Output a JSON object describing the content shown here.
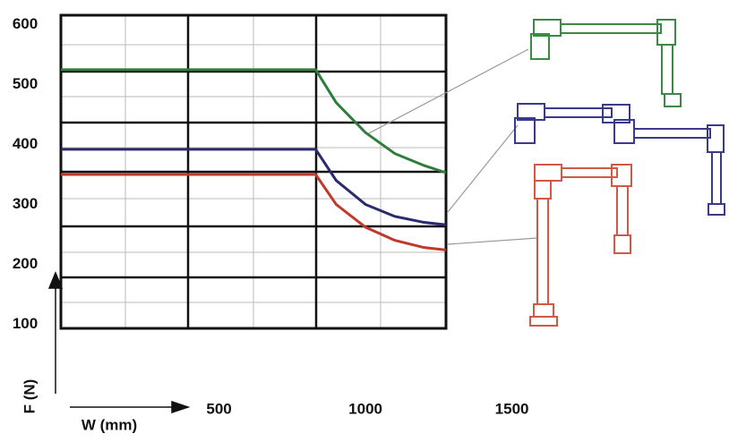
{
  "chart_data": {
    "type": "line",
    "y_axis_label": "F (N)",
    "x_axis_label": "W (mm)",
    "x": [
      -40,
      830,
      900,
      1000,
      1100,
      1200,
      1275
    ],
    "series": [
      {
        "color": "#2e7d3a",
        "values": [
          525,
          525,
          470,
          420,
          385,
          365,
          353
        ]
      },
      {
        "color": "#2a2a6e",
        "values": [
          392,
          392,
          340,
          300,
          280,
          270,
          266
        ]
      },
      {
        "color": "#c0392b",
        "values": [
          350,
          350,
          300,
          262,
          240,
          228,
          224
        ]
      }
    ],
    "xlim": [
      -40,
      1275
    ],
    "xticks": [
      500,
      1000,
      1500
    ],
    "ylim": [
      93,
      616
    ],
    "yticks": [
      100,
      200,
      300,
      400,
      500,
      600
    ]
  }
}
